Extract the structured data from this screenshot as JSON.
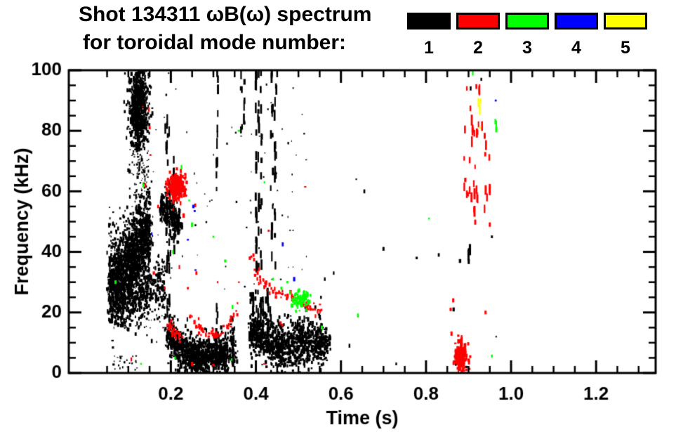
{
  "header": {
    "title": "Shot 134311 ωB(ω) spectrum",
    "subtitle": "for toroidal mode number:",
    "legend": [
      {
        "label": "1",
        "color": "#000000"
      },
      {
        "label": "2",
        "color": "#ff0000"
      },
      {
        "label": "3",
        "color": "#00ff00"
      },
      {
        "label": "4",
        "color": "#0000ff"
      },
      {
        "label": "5",
        "color": "#ffff00"
      }
    ]
  },
  "chart_data": {
    "type": "scatter",
    "title": "Shot 134311 ωB(ω) spectrum",
    "subtitle": "for toroidal mode number:",
    "xlabel": "Time (s)",
    "ylabel": "Frequency (kHz)",
    "xlim": [
      -0.04,
      1.34
    ],
    "ylim": [
      0,
      100
    ],
    "x_major_ticks": [
      0.2,
      0.4,
      0.6,
      0.8,
      1.0,
      1.2
    ],
    "x_tick_labels": [
      "0.2",
      "0.4",
      "0.6",
      "0.8",
      "1.0",
      "1.2"
    ],
    "x_minor_step": 0.05,
    "y_major_ticks": [
      0,
      20,
      40,
      60,
      80,
      100
    ],
    "y_tick_labels": [
      "0",
      "20",
      "40",
      "60",
      "80",
      "100"
    ],
    "y_minor_step": 5,
    "grid": false,
    "background": "#ffffff",
    "frame_color": "#000000",
    "legend_position": "top-right",
    "mode_colors": {
      "1": "#000000",
      "2": "#ff0000",
      "3": "#00ff00",
      "4": "#0000ff",
      "5": "#ffff00"
    },
    "clusters": [
      {
        "name": "n1-highfreq-burst",
        "mode": 1,
        "type": "blob",
        "cx": 0.125,
        "cy": 88,
        "st": 0.011,
        "sf": 7.5,
        "n": 650
      },
      {
        "name": "n1-highfreq-fringe",
        "mode": 1,
        "type": "blob",
        "cx": 0.128,
        "cy": 66,
        "st": 0.012,
        "sf": 5,
        "n": 80,
        "small": true
      },
      {
        "name": "n1-chirp-mass",
        "mode": 1,
        "type": "band",
        "pts": [
          [
            0.055,
            28
          ],
          [
            0.08,
            32
          ],
          [
            0.1,
            36
          ],
          [
            0.125,
            42
          ],
          [
            0.15,
            47
          ]
        ],
        "thick": 14,
        "n": 1400
      },
      {
        "name": "n1-chirp-tail",
        "mode": 1,
        "type": "band",
        "pts": [
          [
            0.08,
            22
          ],
          [
            0.12,
            24
          ],
          [
            0.16,
            28
          ],
          [
            0.185,
            30
          ]
        ],
        "thick": 9,
        "n": 320
      },
      {
        "name": "n1-chirp-fringe",
        "mode": 1,
        "type": "scatter",
        "t": [
          0.05,
          0.2
        ],
        "f": [
          14,
          56
        ],
        "n": 180,
        "small": true
      },
      {
        "name": "n1-falling-blob",
        "mode": 1,
        "type": "band",
        "pts": [
          [
            0.176,
            56
          ],
          [
            0.19,
            54
          ],
          [
            0.205,
            51.5
          ],
          [
            0.222,
            48.5
          ]
        ],
        "thick": 5,
        "n": 240
      },
      {
        "name": "n1-column-019",
        "mode": 1,
        "type": "vstreaks",
        "t": [
          0.188,
          0.2
        ],
        "f": [
          15,
          85
        ],
        "n": 40
      },
      {
        "name": "n1-column-0205",
        "mode": 1,
        "type": "vstreaks",
        "t": [
          0.204,
          0.211
        ],
        "f": [
          40,
          78
        ],
        "n": 12
      },
      {
        "name": "n1-bottom-band-a",
        "mode": 1,
        "type": "band",
        "pts": [
          [
            0.192,
            14
          ],
          [
            0.21,
            10
          ],
          [
            0.23,
            7
          ],
          [
            0.25,
            5
          ],
          [
            0.28,
            5
          ],
          [
            0.31,
            6
          ],
          [
            0.333,
            5
          ]
        ],
        "thick": 7,
        "n": 900
      },
      {
        "name": "n1-spike-0345",
        "mode": 1,
        "type": "blob",
        "cx": 0.345,
        "cy": 8,
        "st": 0.004,
        "sf": 3.5,
        "n": 70
      },
      {
        "name": "n1-bottom-band-b",
        "mode": 1,
        "type": "band",
        "pts": [
          [
            0.388,
            13
          ],
          [
            0.405,
            12
          ],
          [
            0.43,
            10
          ],
          [
            0.455,
            9
          ],
          [
            0.48,
            9
          ],
          [
            0.51,
            10
          ],
          [
            0.535,
            10
          ],
          [
            0.558,
            10
          ]
        ],
        "thick": 8,
        "n": 850
      },
      {
        "name": "n1-band-b-spikes",
        "mode": 1,
        "type": "vstreaks",
        "t": [
          0.385,
          0.437
        ],
        "f": [
          12,
          27
        ],
        "n": 55
      },
      {
        "name": "n1-band-b-end",
        "mode": 1,
        "type": "blob",
        "cx": 0.562,
        "cy": 10,
        "st": 0.006,
        "sf": 2.5,
        "n": 70
      },
      {
        "name": "n1-top-column-040",
        "mode": 1,
        "type": "vstreaks",
        "t": [
          0.398,
          0.415
        ],
        "f": [
          33,
          100
        ],
        "n": 42
      },
      {
        "name": "n1-top-column-044",
        "mode": 1,
        "type": "vstreaks",
        "t": [
          0.435,
          0.448
        ],
        "f": [
          35,
          100
        ],
        "n": 30
      },
      {
        "name": "n1-top-column-031",
        "mode": 1,
        "type": "vstreaks",
        "t": [
          0.305,
          0.313
        ],
        "f": [
          60,
          100
        ],
        "n": 12
      },
      {
        "name": "n1-top-column-0365",
        "mode": 1,
        "type": "vstreaks",
        "t": [
          0.362,
          0.376
        ],
        "f": [
          80,
          100
        ],
        "n": 10
      },
      {
        "name": "n1-column-031-low",
        "mode": 1,
        "type": "vstreaks",
        "t": [
          0.305,
          0.312
        ],
        "f": [
          3,
          30
        ],
        "n": 7
      },
      {
        "name": "n1-bottomleft-specks",
        "mode": 1,
        "type": "scatter",
        "t": [
          0.065,
          0.125
        ],
        "f": [
          1,
          6
        ],
        "n": 24,
        "small": true
      },
      {
        "name": "n1-speckle",
        "mode": 1,
        "type": "scatter",
        "t": [
          0.13,
          0.52
        ],
        "f": [
          5,
          100
        ],
        "n": 105,
        "small": true
      },
      {
        "name": "n1-column-090",
        "mode": 1,
        "type": "vstreaks",
        "t": [
          0.898,
          0.905
        ],
        "f": [
          35,
          41
        ],
        "n": 4
      },
      {
        "name": "n1-sparse-dots",
        "mode": 1,
        "type": "points",
        "pts": [
          [
            0.553,
            25
          ],
          [
            0.562,
            31
          ],
          [
            0.583,
            33
          ],
          [
            0.62,
            9
          ],
          [
            0.636,
            64
          ],
          [
            0.655,
            60
          ],
          [
            0.7,
            41
          ],
          [
            0.73,
            3
          ],
          [
            0.778,
            38
          ],
          [
            0.83,
            39
          ],
          [
            0.865,
            21
          ],
          [
            0.88,
            37
          ],
          [
            0.905,
            94
          ],
          [
            0.93,
            97
          ],
          [
            0.87,
            3
          ],
          [
            0.895,
            2
          ],
          [
            0.955,
            45
          ],
          [
            0.965,
            12
          ]
        ]
      },
      {
        "name": "n2-blob-60",
        "mode": 2,
        "type": "blob",
        "cx": 0.212,
        "cy": 61.5,
        "st": 0.009,
        "sf": 2.0,
        "n": 280
      },
      {
        "name": "n2-trace-down",
        "mode": 2,
        "type": "trace",
        "pts": [
          [
            0.193,
            15.5
          ],
          [
            0.21,
            13
          ],
          [
            0.228,
            10.2
          ]
        ],
        "jf": 0.9,
        "n": 30
      },
      {
        "name": "n2-trace-v",
        "mode": 2,
        "type": "trace",
        "pts": [
          [
            0.248,
            19
          ],
          [
            0.27,
            15
          ],
          [
            0.285,
            13
          ],
          [
            0.3,
            12.6
          ],
          [
            0.32,
            13.5
          ],
          [
            0.34,
            17
          ],
          [
            0.355,
            21.5
          ]
        ],
        "jf": 0.8,
        "n": 55
      },
      {
        "name": "n2-chirp",
        "mode": 2,
        "type": "trace",
        "pts": [
          [
            0.39,
            39
          ],
          [
            0.398,
            35
          ],
          [
            0.408,
            31.5
          ],
          [
            0.422,
            29
          ],
          [
            0.44,
            27
          ],
          [
            0.465,
            25.5
          ],
          [
            0.49,
            24
          ],
          [
            0.515,
            22.5
          ],
          [
            0.535,
            21.5
          ],
          [
            0.553,
            20.5
          ]
        ],
        "jf": 0.8,
        "n": 80
      },
      {
        "name": "n2-column-090",
        "mode": 2,
        "type": "vstreaks",
        "t": [
          0.888,
          0.952
        ],
        "f": [
          48,
          95
        ],
        "n": 42
      },
      {
        "name": "n2-low-blob",
        "mode": 2,
        "type": "blob",
        "cx": 0.882,
        "cy": 5.5,
        "st": 0.0075,
        "sf": 2.2,
        "n": 200
      },
      {
        "name": "n2-low-spike",
        "mode": 2,
        "type": "vstreaks",
        "t": [
          0.879,
          0.887
        ],
        "f": [
          7,
          12
        ],
        "n": 5
      },
      {
        "name": "n2-dots",
        "mode": 2,
        "type": "points",
        "pts": [
          [
            0.107,
            4.5
          ],
          [
            0.134,
            88
          ],
          [
            0.148,
            87
          ],
          [
            0.15,
            81
          ],
          [
            0.152,
            72
          ],
          [
            0.14,
            62
          ],
          [
            0.17,
            55
          ],
          [
            0.205,
            54
          ],
          [
            0.23,
            52
          ],
          [
            0.16,
            33
          ],
          [
            0.185,
            28
          ],
          [
            0.22,
            35
          ],
          [
            0.24,
            28
          ],
          [
            0.26,
            33
          ],
          [
            0.31,
            30
          ],
          [
            0.36,
            30
          ],
          [
            0.43,
            47
          ],
          [
            0.458,
            16.5
          ],
          [
            0.462,
            15.8
          ],
          [
            0.516,
            61.5
          ],
          [
            0.86,
            13
          ],
          [
            0.858,
            21
          ],
          [
            0.864,
            24
          ],
          [
            0.94,
            20
          ],
          [
            0.25,
            3
          ],
          [
            0.3,
            2.5
          ],
          [
            0.42,
            3
          ],
          [
            0.896,
            94
          ]
        ]
      },
      {
        "name": "n3-patch",
        "mode": 3,
        "type": "blob",
        "cx": 0.505,
        "cy": 24.5,
        "st": 0.011,
        "sf": 1.6,
        "n": 75
      },
      {
        "name": "n3-dash-096",
        "mode": 3,
        "type": "vstreaks",
        "t": [
          0.962,
          0.967
        ],
        "f": [
          79,
          84
        ],
        "n": 3
      },
      {
        "name": "n3-dots",
        "mode": 3,
        "type": "points",
        "pts": [
          [
            0.135,
            62
          ],
          [
            0.205,
            40
          ],
          [
            0.225,
            68
          ],
          [
            0.243,
            57
          ],
          [
            0.25,
            49
          ],
          [
            0.3,
            45
          ],
          [
            0.328,
            37
          ],
          [
            0.345,
            21.8
          ],
          [
            0.343,
            4.4
          ],
          [
            0.36,
            80
          ],
          [
            0.42,
            63
          ],
          [
            0.44,
            31
          ],
          [
            0.46,
            28
          ],
          [
            0.474,
            30
          ],
          [
            0.64,
            19
          ],
          [
            0.807,
            51
          ],
          [
            0.955,
            5.6
          ],
          [
            0.07,
            30
          ],
          [
            0.13,
            3
          ],
          [
            0.555,
            15
          ],
          [
            0.21,
            5
          ],
          [
            0.91,
            99
          ]
        ]
      },
      {
        "name": "n4-dots",
        "mode": 4,
        "type": "points",
        "pts": [
          [
            0.253,
            55
          ],
          [
            0.256,
            53.5
          ],
          [
            0.24,
            44
          ],
          [
            0.258,
            34
          ],
          [
            0.463,
            42.5
          ],
          [
            0.49,
            31
          ],
          [
            0.964,
            90
          ],
          [
            0.155,
            46
          ]
        ]
      },
      {
        "name": "n5-dash-0925",
        "mode": 5,
        "type": "vstreaks",
        "t": [
          0.923,
          0.929
        ],
        "f": [
          85,
          90
        ],
        "n": 3
      },
      {
        "name": "n5-dot",
        "mode": 5,
        "type": "points",
        "pts": [
          [
            0.927,
            81
          ]
        ]
      }
    ]
  }
}
